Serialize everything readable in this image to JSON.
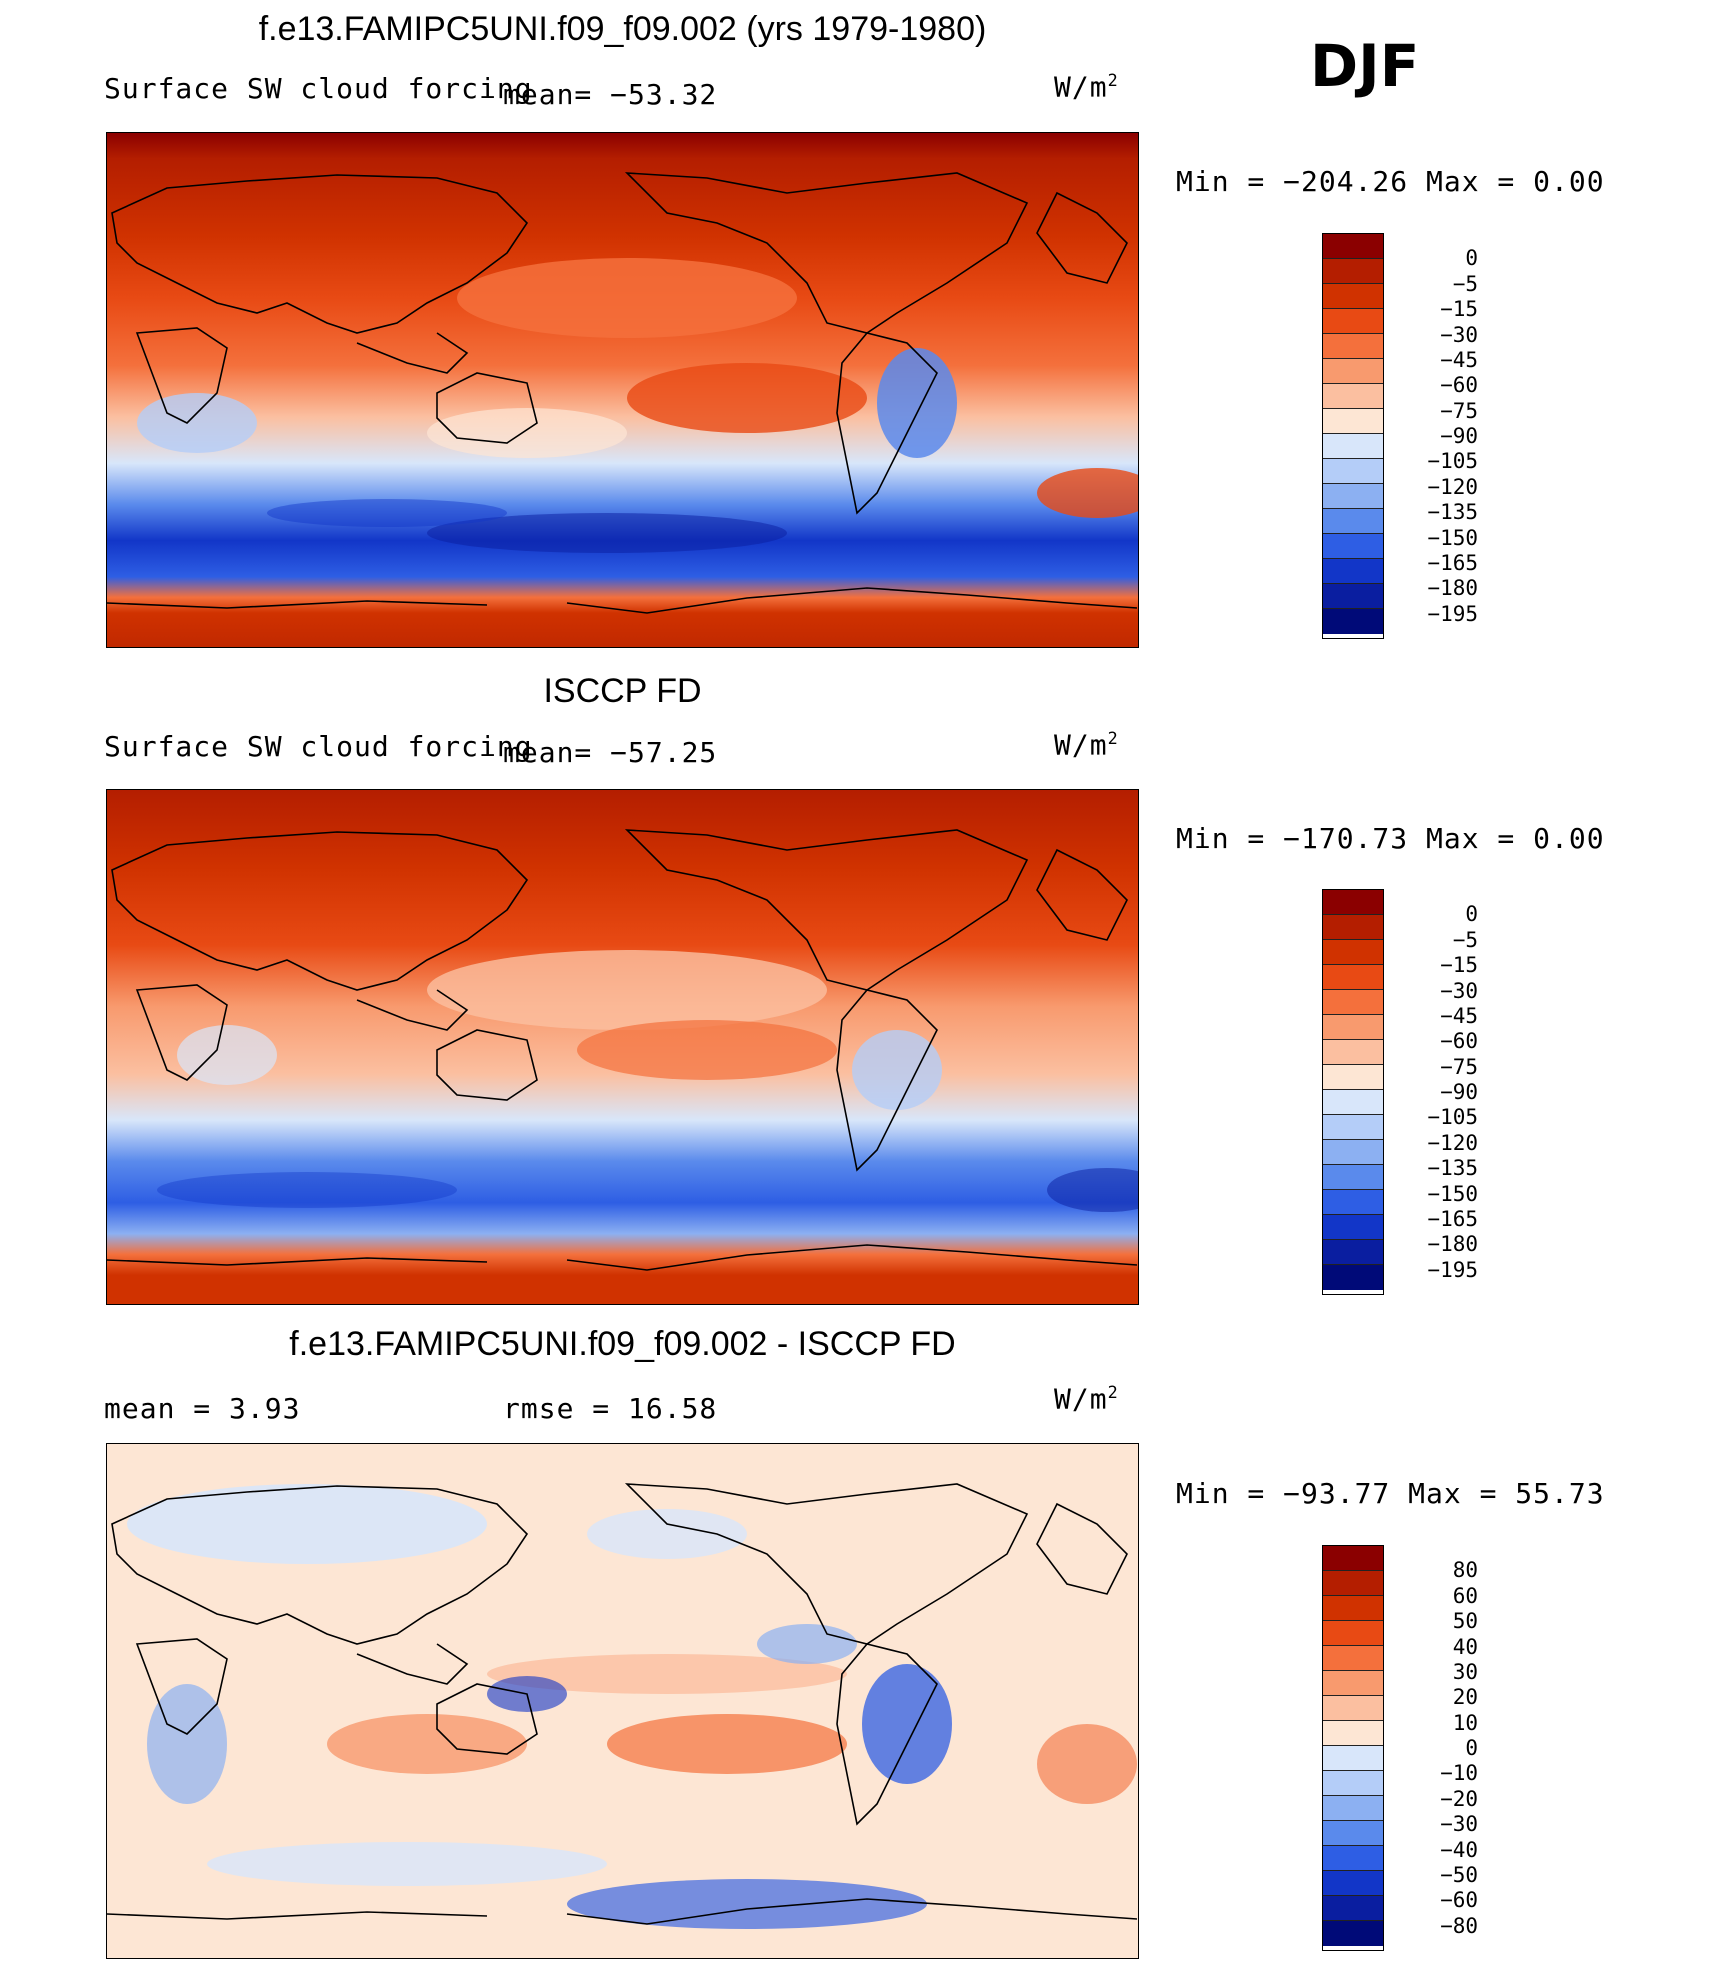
{
  "season": "DJF",
  "units": "W/m",
  "units_exp": "2",
  "panels": [
    {
      "title": "f.e13.FAMIPC5UNI.f09_f09.002 (yrs 1979-1980)",
      "field": "Surface SW cloud forcing",
      "stat1": "mean= −53.32",
      "stat2": "",
      "minmax": "Min = −204.26 Max =   0.00"
    },
    {
      "title": "ISCCP FD",
      "field": "Surface SW cloud forcing",
      "stat1": "mean= −57.25",
      "stat2": "",
      "minmax": "Min = −170.73 Max =   0.00"
    },
    {
      "title": "f.e13.FAMIPC5UNI.f09_f09.002 - ISCCP FD",
      "field": "",
      "stat1": "mean =     3.93",
      "stat2": "rmse =   16.58",
      "minmax": "Min = −93.77 Max =  55.73"
    }
  ],
  "colorbars": {
    "abs": {
      "labels": [
        "0",
        "−5",
        "−15",
        "−30",
        "−45",
        "−60",
        "−75",
        "−90",
        "−105",
        "−120",
        "−135",
        "−150",
        "−165",
        "−180",
        "−195"
      ],
      "colors": [
        "#8b0000",
        "#b41e00",
        "#d03200",
        "#e84a14",
        "#f4703c",
        "#f89a6e",
        "#fbbfa0",
        "#fde6d4",
        "#d8e6fa",
        "#b4cdf8",
        "#8cb0f2",
        "#5a8aec",
        "#2e5ee4",
        "#1236c8",
        "#0a1ea0",
        "#000a78"
      ]
    },
    "diff": {
      "labels": [
        "80",
        "60",
        "50",
        "40",
        "30",
        "20",
        "10",
        "0",
        "−10",
        "−20",
        "−30",
        "−40",
        "−50",
        "−60",
        "−80"
      ],
      "colors": [
        "#8b0000",
        "#b41e00",
        "#d03200",
        "#e84a14",
        "#f4703c",
        "#f89a6e",
        "#fbbfa0",
        "#fde6d4",
        "#d8e6fa",
        "#b4cdf8",
        "#8cb0f2",
        "#5a8aec",
        "#2e5ee4",
        "#1236c8",
        "#0a1ea0",
        "#000a78"
      ]
    }
  }
}
